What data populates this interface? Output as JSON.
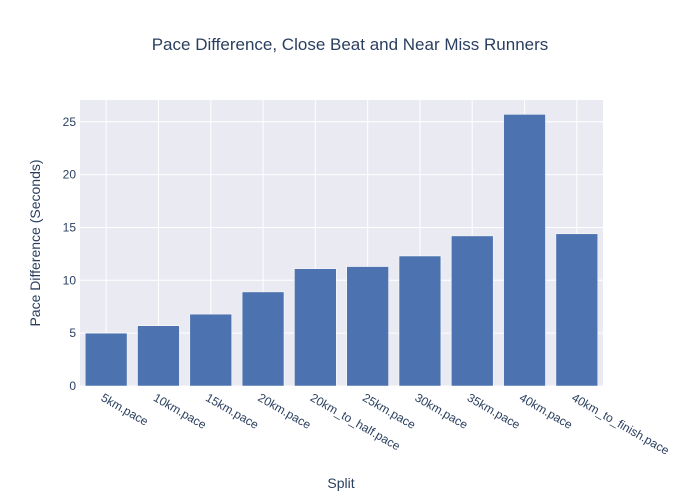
{
  "chart_data": {
    "type": "bar",
    "title": "Pace Difference, Close Beat and Near Miss Runners",
    "xlabel": "Split",
    "ylabel": "Pace Difference (Seconds)",
    "categories": [
      "5km.pace",
      "10km.pace",
      "15km.pace",
      "20km.pace",
      "20km_to_half.pace",
      "25km.pace",
      "30km.pace",
      "35km.pace",
      "40km.pace",
      "40km_to_finish.pace"
    ],
    "values": [
      5.0,
      5.7,
      6.8,
      8.9,
      11.1,
      11.3,
      12.3,
      14.2,
      25.7,
      14.4
    ],
    "ylim": [
      0,
      27.06
    ],
    "yticks": [
      0,
      5,
      10,
      15,
      20,
      25
    ],
    "ytick_labels": [
      "0",
      "5",
      "10",
      "15",
      "20",
      "25"
    ],
    "grid": true,
    "legend": "none",
    "colors": {
      "bar": "#4c72b0",
      "plot_bg": "#eaeaf2",
      "grid": "#ffffff",
      "text": "#2a3f5f"
    }
  }
}
